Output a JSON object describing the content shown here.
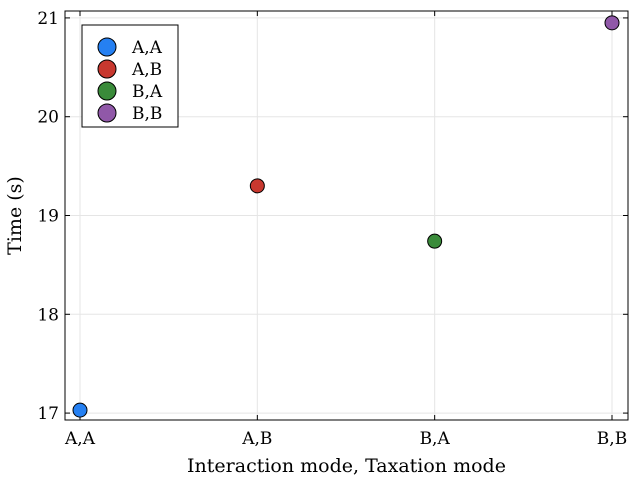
{
  "chart_data": {
    "type": "scatter",
    "xlabel": "Interaction mode, Taxation mode",
    "ylabel": "Time (s)",
    "categories": [
      "A,A",
      "A,B",
      "B,A",
      "B,B"
    ],
    "ylim": [
      16.93,
      21.07
    ],
    "yticks": [
      17,
      18,
      19,
      20,
      21
    ],
    "grid": true,
    "legend_position": "top-left",
    "series": [
      {
        "name": "A,A",
        "color": "#2580f2",
        "points": [
          {
            "x": "A,A",
            "y": 17.03
          }
        ]
      },
      {
        "name": "A,B",
        "color": "#c8382f",
        "points": [
          {
            "x": "A,B",
            "y": 19.3
          }
        ]
      },
      {
        "name": "B,A",
        "color": "#3a8b3a",
        "points": [
          {
            "x": "B,A",
            "y": 18.74
          }
        ]
      },
      {
        "name": "B,B",
        "color": "#9058a8",
        "points": [
          {
            "x": "B,B",
            "y": 20.95
          }
        ]
      }
    ]
  }
}
